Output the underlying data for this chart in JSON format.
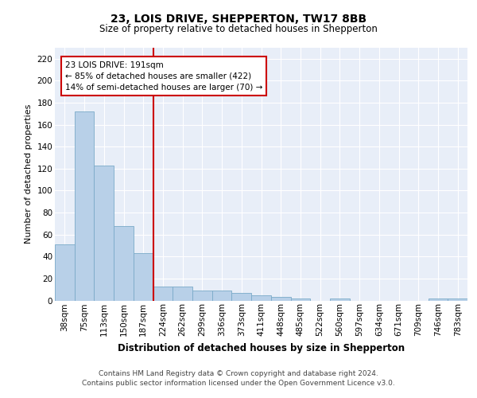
{
  "title1": "23, LOIS DRIVE, SHEPPERTON, TW17 8BB",
  "title2": "Size of property relative to detached houses in Shepperton",
  "xlabel": "Distribution of detached houses by size in Shepperton",
  "ylabel": "Number of detached properties",
  "bar_labels": [
    "38sqm",
    "75sqm",
    "113sqm",
    "150sqm",
    "187sqm",
    "224sqm",
    "262sqm",
    "299sqm",
    "336sqm",
    "373sqm",
    "411sqm",
    "448sqm",
    "485sqm",
    "522sqm",
    "560sqm",
    "597sqm",
    "634sqm",
    "671sqm",
    "709sqm",
    "746sqm",
    "783sqm"
  ],
  "bar_values": [
    51,
    172,
    123,
    68,
    43,
    13,
    13,
    9,
    9,
    7,
    5,
    3,
    2,
    0,
    2,
    0,
    0,
    0,
    0,
    2,
    2
  ],
  "bar_color": "#b8d0e8",
  "bar_edge_color": "#7aaac8",
  "vline_x": 4.5,
  "vline_color": "#cc0000",
  "annotation_text": "23 LOIS DRIVE: 191sqm\n← 85% of detached houses are smaller (422)\n14% of semi-detached houses are larger (70) →",
  "annotation_box_color": "#cc0000",
  "ylim": [
    0,
    230
  ],
  "yticks": [
    0,
    20,
    40,
    60,
    80,
    100,
    120,
    140,
    160,
    180,
    200,
    220
  ],
  "footer1": "Contains HM Land Registry data © Crown copyright and database right 2024.",
  "footer2": "Contains public sector information licensed under the Open Government Licence v3.0.",
  "bg_color": "#e8eef8",
  "grid_color": "#ffffff",
  "title1_fontsize": 10,
  "title2_fontsize": 8.5,
  "xlabel_fontsize": 8.5,
  "ylabel_fontsize": 8,
  "tick_fontsize": 7.5,
  "annotation_fontsize": 7.5,
  "footer_fontsize": 6.5
}
